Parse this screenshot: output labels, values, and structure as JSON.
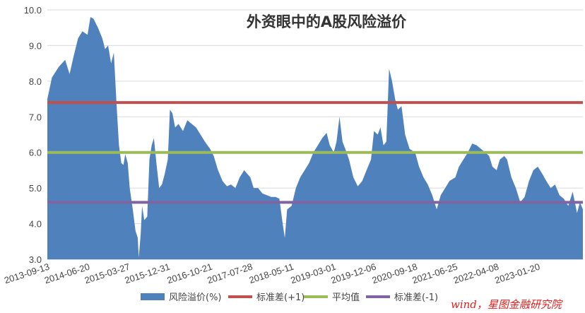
{
  "chart_data": {
    "type": "area",
    "title": "外资眼中的A股风险溢价",
    "ylim": [
      3.0,
      10.0
    ],
    "yticks": [
      "3.0",
      "4.0",
      "5.0",
      "6.0",
      "7.0",
      "8.0",
      "9.0",
      "10.0"
    ],
    "xtick_labels": [
      "2013-09-13",
      "2014-06-20",
      "2015-03-27",
      "2015-12-31",
      "2016-10-21",
      "2017-07-28",
      "2018-05-11",
      "2019-03-01",
      "2019-12-06",
      "2020-09-18",
      "2021-06-25",
      "2022-04-08",
      "2023-01-20"
    ],
    "x_range": [
      "2013-09-13",
      "2023-11-30"
    ],
    "series": [
      {
        "name": "风险溢价(%)",
        "kind": "area",
        "color": "#4f81bd",
        "points": [
          [
            "2013-09-13",
            7.5
          ],
          [
            "2013-10-15",
            8.1
          ],
          [
            "2013-12-01",
            8.4
          ],
          [
            "2014-01-15",
            8.6
          ],
          [
            "2014-02-15",
            8.2
          ],
          [
            "2014-03-15",
            8.7
          ],
          [
            "2014-04-15",
            9.2
          ],
          [
            "2014-05-15",
            9.4
          ],
          [
            "2014-06-20",
            9.3
          ],
          [
            "2014-07-10",
            9.8
          ],
          [
            "2014-08-01",
            9.75
          ],
          [
            "2014-09-01",
            9.5
          ],
          [
            "2014-10-01",
            9.2
          ],
          [
            "2014-10-20",
            8.9
          ],
          [
            "2014-11-10",
            9.0
          ],
          [
            "2014-12-01",
            8.5
          ],
          [
            "2014-12-20",
            8.8
          ],
          [
            "2015-01-10",
            7.2
          ],
          [
            "2015-01-25",
            6.2
          ],
          [
            "2015-02-10",
            5.7
          ],
          [
            "2015-02-25",
            5.65
          ],
          [
            "2015-03-10",
            5.95
          ],
          [
            "2015-03-27",
            5.7
          ],
          [
            "2015-04-10",
            5.0
          ],
          [
            "2015-05-01",
            4.4
          ],
          [
            "2015-05-20",
            3.8
          ],
          [
            "2015-06-05",
            3.6
          ],
          [
            "2015-06-12",
            3.05
          ],
          [
            "2015-06-25",
            3.7
          ],
          [
            "2015-07-05",
            4.5
          ],
          [
            "2015-07-20",
            4.1
          ],
          [
            "2015-08-10",
            4.2
          ],
          [
            "2015-08-25",
            5.8
          ],
          [
            "2015-09-10",
            6.2
          ],
          [
            "2015-09-25",
            6.4
          ],
          [
            "2015-10-15",
            5.6
          ],
          [
            "2015-11-01",
            5.0
          ],
          [
            "2015-11-20",
            5.1
          ],
          [
            "2015-12-10",
            5.4
          ],
          [
            "2015-12-31",
            5.8
          ],
          [
            "2016-01-15",
            7.2
          ],
          [
            "2016-02-01",
            7.1
          ],
          [
            "2016-02-20",
            6.7
          ],
          [
            "2016-03-15",
            6.8
          ],
          [
            "2016-04-15",
            6.6
          ],
          [
            "2016-05-15",
            6.9
          ],
          [
            "2016-06-15",
            6.8
          ],
          [
            "2016-07-15",
            6.7
          ],
          [
            "2016-08-15",
            6.5
          ],
          [
            "2016-09-15",
            6.3
          ],
          [
            "2016-10-21",
            6.1
          ],
          [
            "2016-11-15",
            5.9
          ],
          [
            "2016-12-15",
            5.5
          ],
          [
            "2017-01-15",
            5.2
          ],
          [
            "2017-02-15",
            5.05
          ],
          [
            "2017-03-15",
            5.1
          ],
          [
            "2017-04-15",
            5.0
          ],
          [
            "2017-05-15",
            5.3
          ],
          [
            "2017-06-15",
            5.5
          ],
          [
            "2017-07-28",
            5.3
          ],
          [
            "2017-08-20",
            5.0
          ],
          [
            "2017-09-20",
            5.0
          ],
          [
            "2017-10-20",
            4.85
          ],
          [
            "2017-11-20",
            4.8
          ],
          [
            "2017-12-20",
            4.75
          ],
          [
            "2018-01-20",
            4.75
          ],
          [
            "2018-02-15",
            4.7
          ],
          [
            "2018-03-10",
            4.0
          ],
          [
            "2018-03-25",
            3.6
          ],
          [
            "2018-04-10",
            4.4
          ],
          [
            "2018-05-11",
            4.5
          ],
          [
            "2018-06-10",
            5.0
          ],
          [
            "2018-07-10",
            5.3
          ],
          [
            "2018-08-10",
            5.5
          ],
          [
            "2018-09-10",
            5.7
          ],
          [
            "2018-10-10",
            6.0
          ],
          [
            "2018-11-10",
            6.2
          ],
          [
            "2018-12-10",
            6.4
          ],
          [
            "2019-01-10",
            6.55
          ],
          [
            "2019-02-01",
            6.2
          ],
          [
            "2019-03-01",
            6.0
          ],
          [
            "2019-03-20",
            6.3
          ],
          [
            "2019-04-10",
            7.0
          ],
          [
            "2019-05-01",
            6.3
          ],
          [
            "2019-05-20",
            6.1
          ],
          [
            "2019-06-15",
            5.8
          ],
          [
            "2019-07-15",
            5.3
          ],
          [
            "2019-08-15",
            5.05
          ],
          [
            "2019-09-15",
            5.2
          ],
          [
            "2019-10-15",
            5.5
          ],
          [
            "2019-11-15",
            5.8
          ],
          [
            "2019-12-06",
            6.6
          ],
          [
            "2020-01-01",
            6.5
          ],
          [
            "2020-01-20",
            6.7
          ],
          [
            "2020-02-10",
            6.2
          ],
          [
            "2020-03-01",
            6.3
          ],
          [
            "2020-03-20",
            8.35
          ],
          [
            "2020-04-10",
            8.0
          ],
          [
            "2020-05-01",
            7.5
          ],
          [
            "2020-05-20",
            7.2
          ],
          [
            "2020-06-15",
            7.3
          ],
          [
            "2020-07-10",
            6.5
          ],
          [
            "2020-08-10",
            6.1
          ],
          [
            "2020-09-18",
            6.0
          ],
          [
            "2020-10-15",
            5.6
          ],
          [
            "2020-11-15",
            5.3
          ],
          [
            "2020-12-15",
            5.1
          ],
          [
            "2021-01-15",
            4.8
          ],
          [
            "2021-02-15",
            4.4
          ],
          [
            "2021-03-15",
            4.8
          ],
          [
            "2021-04-15",
            5.0
          ],
          [
            "2021-05-15",
            5.2
          ],
          [
            "2021-06-25",
            5.3
          ],
          [
            "2021-07-20",
            5.6
          ],
          [
            "2021-08-20",
            5.8
          ],
          [
            "2021-09-20",
            6.0
          ],
          [
            "2021-10-20",
            6.25
          ],
          [
            "2021-11-20",
            6.2
          ],
          [
            "2021-12-20",
            6.1
          ],
          [
            "2022-01-20",
            6.0
          ],
          [
            "2022-02-15",
            5.9
          ],
          [
            "2022-03-10",
            5.6
          ],
          [
            "2022-04-08",
            5.5
          ],
          [
            "2022-05-01",
            5.8
          ],
          [
            "2022-06-01",
            5.9
          ],
          [
            "2022-06-20",
            5.8
          ],
          [
            "2022-07-20",
            5.3
          ],
          [
            "2022-08-20",
            5.0
          ],
          [
            "2022-09-20",
            4.6
          ],
          [
            "2022-10-20",
            4.75
          ],
          [
            "2022-11-20",
            5.2
          ],
          [
            "2022-12-20",
            5.5
          ],
          [
            "2023-01-20",
            5.6
          ],
          [
            "2023-02-20",
            5.4
          ],
          [
            "2023-03-20",
            5.2
          ],
          [
            "2023-04-20",
            5.0
          ],
          [
            "2023-05-20",
            5.1
          ],
          [
            "2023-06-20",
            4.8
          ],
          [
            "2023-07-20",
            4.7
          ],
          [
            "2023-08-20",
            4.5
          ],
          [
            "2023-09-20",
            4.9
          ],
          [
            "2023-10-20",
            4.3
          ],
          [
            "2023-11-10",
            4.6
          ],
          [
            "2023-11-30",
            4.4
          ]
        ]
      },
      {
        "name": "标准差(+1)",
        "kind": "hline",
        "value": 7.4,
        "color": "#c0504d"
      },
      {
        "name": "平均值",
        "kind": "hline",
        "value": 6.0,
        "color": "#9bbb59"
      },
      {
        "name": "标准差(-1)",
        "kind": "hline",
        "value": 4.6,
        "color": "#8064a2"
      }
    ],
    "grid": "horizontal",
    "legend_position": "bottom"
  },
  "watermark": "wind，星图金融研究院"
}
